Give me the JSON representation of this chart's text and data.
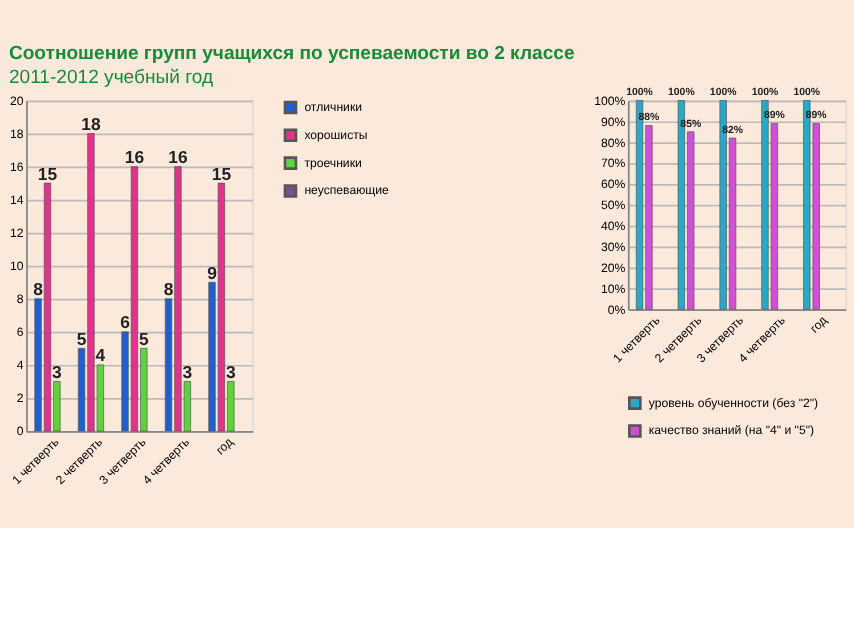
{
  "chart_data": [
    {
      "type": "bar",
      "title": "Соотношение групп учащихся по успеваемости во 2 классе",
      "subtitle": "2011-2012 учебный год",
      "categories": [
        "1 четверть",
        "2 четверть",
        "3 четверть",
        "4 четверть",
        "год"
      ],
      "series": [
        {
          "name": "отличники",
          "color": "#1f5fcf",
          "values": [
            8,
            5,
            6,
            8,
            9
          ]
        },
        {
          "name": "хорошисты",
          "color": "#e0348c",
          "values": [
            15,
            18,
            16,
            16,
            15
          ]
        },
        {
          "name": "троечники",
          "color": "#5fd43a",
          "values": [
            3,
            4,
            5,
            3,
            3
          ]
        },
        {
          "name": "неуспевающие",
          "color": "#7a4f8a",
          "values": [
            null,
            null,
            null,
            null,
            null
          ]
        }
      ],
      "ylim": [
        0,
        20
      ],
      "yticks": [
        0,
        2,
        4,
        6,
        8,
        10,
        12,
        14,
        16,
        18,
        20
      ],
      "grid": "y",
      "legend": "right",
      "data_labels": true
    },
    {
      "type": "bar",
      "categories": [
        "1 четверть",
        "2 четверть",
        "3 четверть",
        "4 четверть",
        "год"
      ],
      "series": [
        {
          "name": "уровень обученности (без \"2\")",
          "color": "#2aa8c8",
          "values": [
            100,
            100,
            100,
            100,
            100
          ],
          "value_labels": [
            "100%",
            "100%",
            "100%",
            "100%",
            "100%"
          ]
        },
        {
          "name": "качество знаний (на \"4\" и \"5\")",
          "color": "#d050d8",
          "values": [
            88,
            85,
            82,
            89,
            89
          ],
          "value_labels": [
            "88%",
            "85%",
            "82%",
            "89%",
            "89%"
          ]
        }
      ],
      "ylim": [
        0,
        100
      ],
      "yticks": [
        {
          "value": 0,
          "label": "0%"
        },
        {
          "value": 10,
          "label": "10%"
        },
        {
          "value": 20,
          "label": "20%"
        },
        {
          "value": 30,
          "label": "30%"
        },
        {
          "value": 40,
          "label": "40%"
        },
        {
          "value": 50,
          "label": "50%"
        },
        {
          "value": 60,
          "label": "60%"
        },
        {
          "value": 70,
          "label": "70%"
        },
        {
          "value": 80,
          "label": "80%"
        },
        {
          "value": 90,
          "label": "90%"
        },
        {
          "value": 100,
          "label": "100%"
        }
      ],
      "grid": "y",
      "legend": "bottom"
    }
  ]
}
